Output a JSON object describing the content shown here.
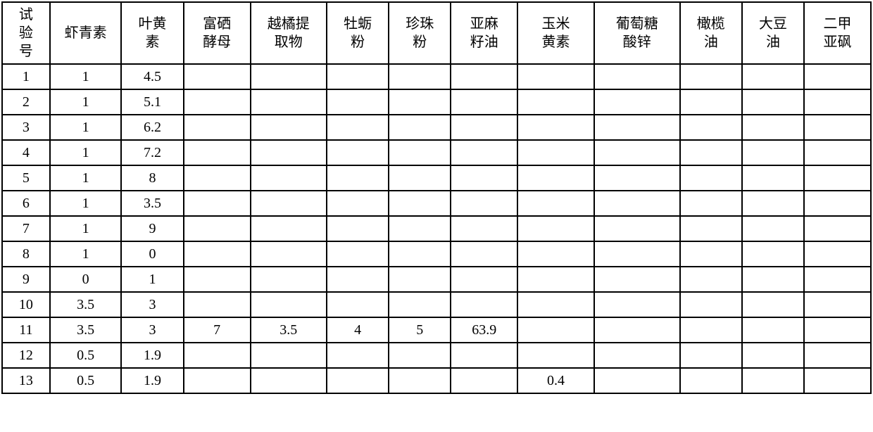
{
  "table": {
    "columns": [
      "试验号",
      "虾青素",
      "叶黄素",
      "富硒酵母",
      "越橘提取物",
      "牡蛎粉",
      "珍珠粉",
      "亚麻籽油",
      "玉米黄素",
      "葡萄糖酸锌",
      "橄榄油",
      "大豆油",
      "二甲亚砜"
    ],
    "header_wrapped": [
      [
        "试",
        "验",
        "号"
      ],
      [
        "虾青素"
      ],
      [
        "叶黄",
        "素"
      ],
      [
        "富硒",
        "酵母"
      ],
      [
        "越橘提",
        "取物"
      ],
      [
        "牡蛎",
        "粉"
      ],
      [
        "珍珠",
        "粉"
      ],
      [
        "亚麻",
        "籽油"
      ],
      [
        "玉米",
        "黄素"
      ],
      [
        "葡萄糖",
        "酸锌"
      ],
      [
        "橄榄",
        "油"
      ],
      [
        "大豆",
        "油"
      ],
      [
        "二甲",
        "亚砜"
      ]
    ],
    "rows": [
      [
        "1",
        "1",
        "4.5",
        "",
        "",
        "",
        "",
        "",
        "",
        "",
        "",
        "",
        ""
      ],
      [
        "2",
        "1",
        "5.1",
        "",
        "",
        "",
        "",
        "",
        "",
        "",
        "",
        "",
        ""
      ],
      [
        "3",
        "1",
        "6.2",
        "",
        "",
        "",
        "",
        "",
        "",
        "",
        "",
        "",
        ""
      ],
      [
        "4",
        "1",
        "7.2",
        "",
        "",
        "",
        "",
        "",
        "",
        "",
        "",
        "",
        ""
      ],
      [
        "5",
        "1",
        "8",
        "",
        "",
        "",
        "",
        "",
        "",
        "",
        "",
        "",
        ""
      ],
      [
        "6",
        "1",
        "3.5",
        "",
        "",
        "",
        "",
        "",
        "",
        "",
        "",
        "",
        ""
      ],
      [
        "7",
        "1",
        "9",
        "",
        "",
        "",
        "",
        "",
        "",
        "",
        "",
        "",
        ""
      ],
      [
        "8",
        "1",
        "0",
        "",
        "",
        "",
        "",
        "",
        "",
        "",
        "",
        "",
        ""
      ],
      [
        "9",
        "0",
        "1",
        "",
        "",
        "",
        "",
        "",
        "",
        "",
        "",
        "",
        ""
      ],
      [
        "10",
        "3.5",
        "3",
        "",
        "",
        "",
        "",
        "",
        "",
        "",
        "",
        "",
        ""
      ],
      [
        "11",
        "3.5",
        "3",
        "7",
        "3.5",
        "4",
        "5",
        "63.9",
        "",
        "",
        "",
        "",
        ""
      ],
      [
        "12",
        "0.5",
        "1.9",
        "",
        "",
        "",
        "",
        "",
        "",
        "",
        "",
        "",
        ""
      ],
      [
        "13",
        "0.5",
        "1.9",
        "",
        "",
        "",
        "",
        "",
        "0.4",
        "",
        "",
        "",
        ""
      ]
    ],
    "border_color": "#000000",
    "background_color": "#ffffff",
    "text_color": "#000000",
    "font_size": 20,
    "header_row_height": 75,
    "data_row_height": 36,
    "col_widths_pct": [
      5,
      7.5,
      6.5,
      7,
      8,
      6.5,
      6.5,
      7,
      8,
      9,
      6.5,
      6.5,
      7
    ]
  }
}
